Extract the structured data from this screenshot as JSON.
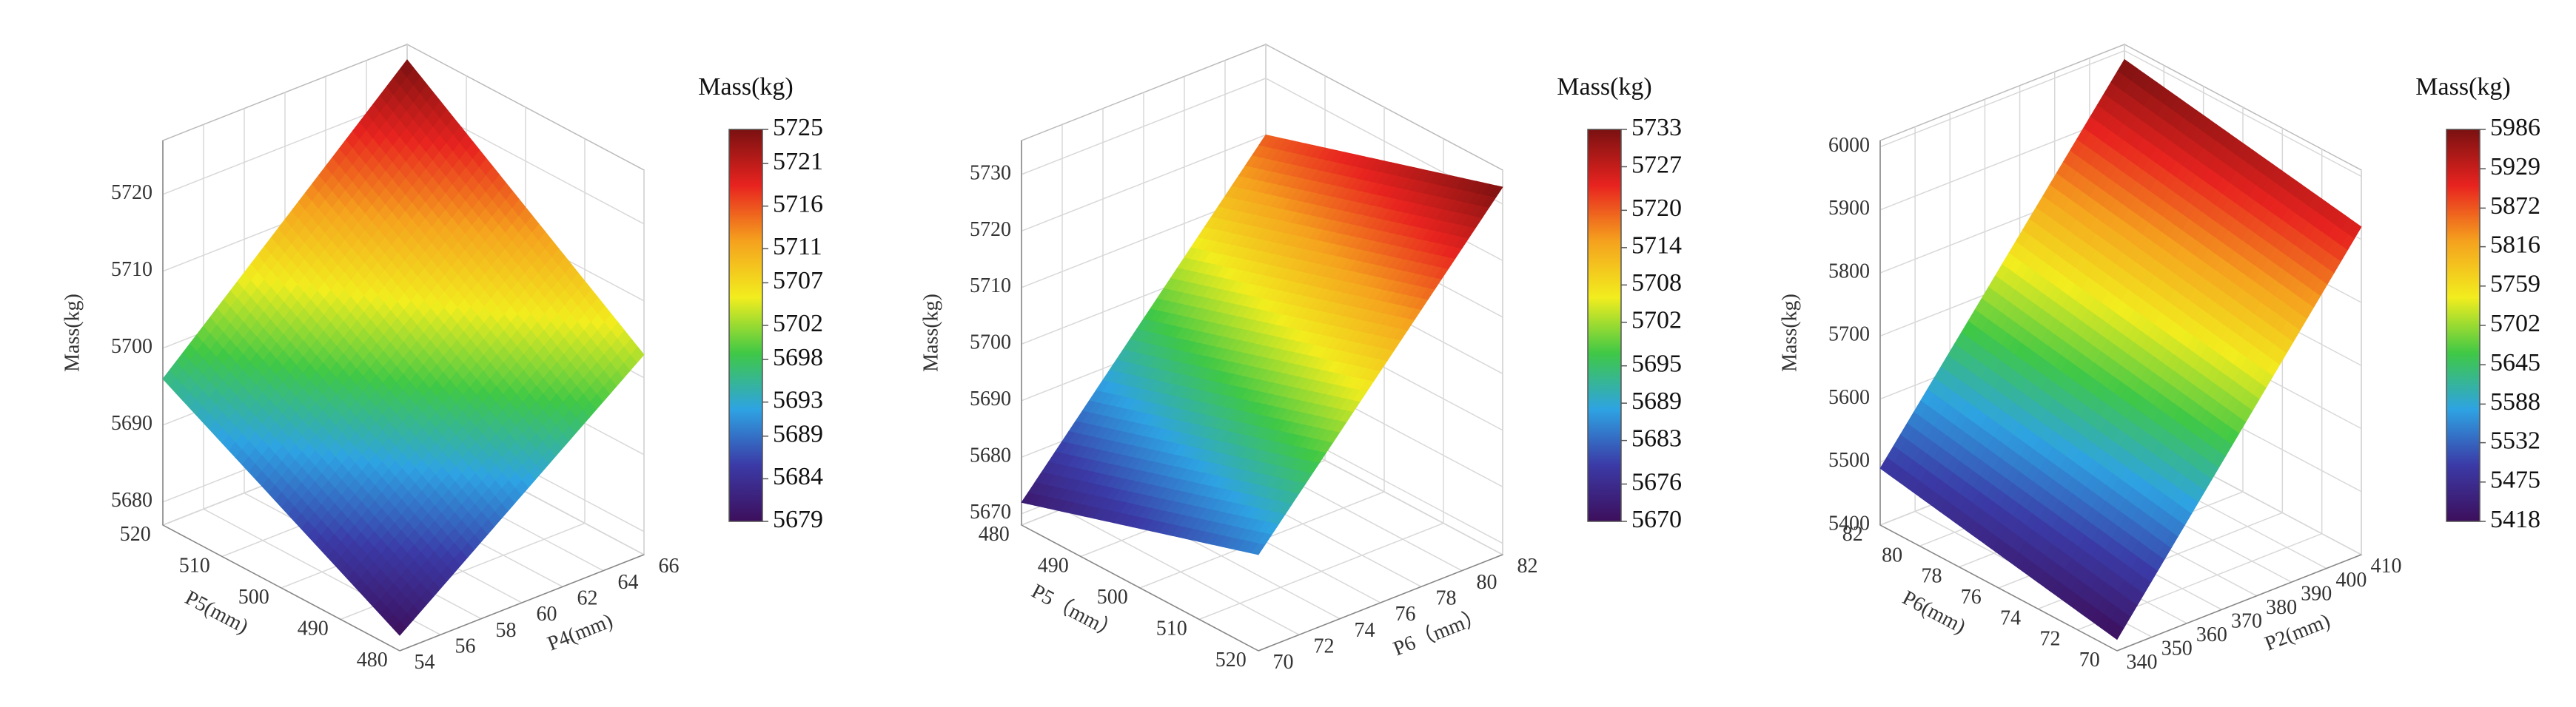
{
  "chart_data": [
    {
      "type": "surface",
      "x_label": "P5(mm)",
      "y_label": "P4(mm)",
      "z_label": "Mass(kg)",
      "colorbar_title": "Mass(kg)",
      "xlim": [
        480,
        520
      ],
      "xticks": [
        480,
        490,
        500,
        510,
        520
      ],
      "ylim": [
        54,
        66
      ],
      "yticks": [
        54,
        56,
        58,
        60,
        62,
        64,
        66
      ],
      "zlim": [
        5677,
        5727
      ],
      "zticks": [
        5680,
        5690,
        5700,
        5710,
        5720
      ],
      "surface": {
        "x": [
          480,
          520
        ],
        "y": [
          54,
          66
        ],
        "z": [
          [
            5679,
            5703
          ],
          [
            5696,
            5725
          ]
        ]
      },
      "clim": [
        5679,
        5725
      ],
      "colorbar_ticks": [
        5679,
        5684,
        5689,
        5693,
        5698,
        5702,
        5707,
        5711,
        5716,
        5721,
        5725
      ],
      "colormap": [
        "#3d0f5c",
        "#3b3aa6",
        "#2ea3e3",
        "#3fc846",
        "#f2ed1e",
        "#f5a21e",
        "#e8231f",
        "#7a1111"
      ],
      "grid": true
    },
    {
      "type": "surface",
      "x_label": "P5（mm）",
      "y_label": "P6（mm）",
      "z_label": "Mass(kg)",
      "colorbar_title": "Mass(kg)",
      "xlim": [
        520,
        480
      ],
      "xticks": [
        480,
        490,
        500,
        510,
        520
      ],
      "ylim": [
        70,
        82
      ],
      "yticks": [
        70,
        72,
        74,
        76,
        78,
        80,
        82
      ],
      "zlim": [
        5668,
        5736
      ],
      "zticks": [
        5670,
        5680,
        5690,
        5700,
        5710,
        5720,
        5730
      ],
      "surface": {
        "x": [
          480,
          520
        ],
        "y": [
          70,
          82
        ],
        "z": [
          [
            5672,
            5720
          ],
          [
            5685,
            5733
          ]
        ]
      },
      "clim": [
        5670,
        5733
      ],
      "colorbar_ticks": [
        5670,
        5676,
        5683,
        5689,
        5695,
        5702,
        5708,
        5714,
        5720,
        5727,
        5733
      ],
      "colormap": [
        "#3d0f5c",
        "#3b3aa6",
        "#2ea3e3",
        "#3fc846",
        "#f2ed1e",
        "#f5a21e",
        "#e8231f",
        "#7a1111"
      ],
      "grid": true
    },
    {
      "type": "surface",
      "x_label": "P6(mm)",
      "y_label": "P2(mm)",
      "z_label": "Mass(kg)",
      "colorbar_title": "Mass(kg)",
      "xlim": [
        70,
        82
      ],
      "xticks": [
        70,
        72,
        74,
        76,
        78,
        80,
        82
      ],
      "ylim": [
        340,
        410
      ],
      "yticks": [
        340,
        350,
        360,
        370,
        380,
        390,
        400,
        410
      ],
      "zlim": [
        5400,
        6010
      ],
      "zticks": [
        5400,
        5500,
        5600,
        5700,
        5800,
        5900,
        6000
      ],
      "surface": {
        "x": [
          70,
          82
        ],
        "y": [
          340,
          410
        ],
        "z": [
          [
            5418,
            5920
          ],
          [
            5490,
            5986
          ]
        ]
      },
      "clim": [
        5418,
        5986
      ],
      "colorbar_ticks": [
        5418,
        5475,
        5532,
        5588,
        5645,
        5702,
        5759,
        5816,
        5872,
        5929,
        5986
      ],
      "colormap": [
        "#3d0f5c",
        "#3b3aa6",
        "#2ea3e3",
        "#3fc846",
        "#f2ed1e",
        "#f5a21e",
        "#e8231f",
        "#7a1111"
      ],
      "grid": true
    }
  ]
}
